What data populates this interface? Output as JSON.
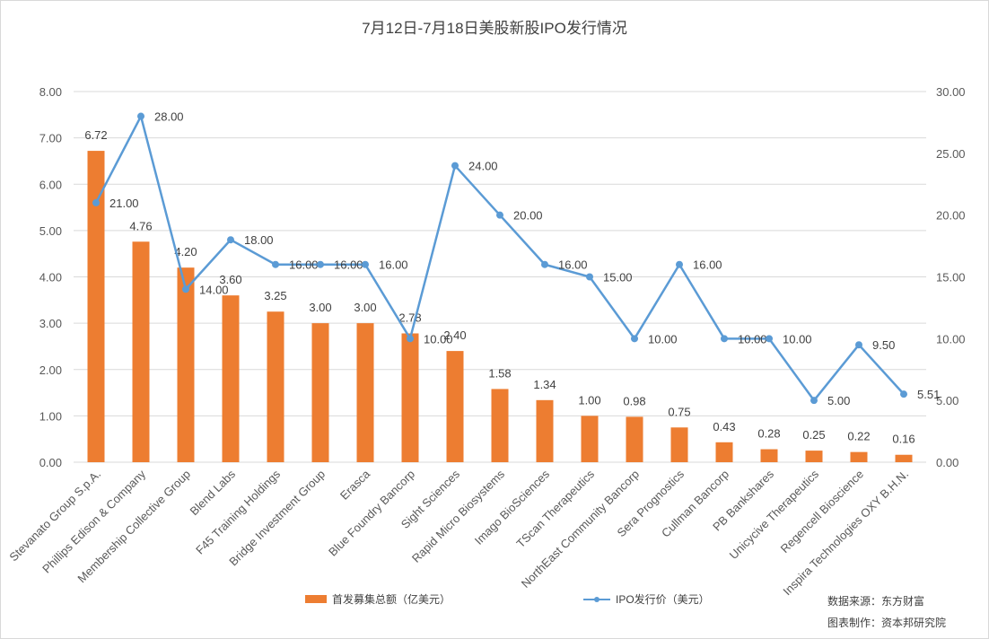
{
  "chart_data": {
    "type": "bar+line",
    "title": "7月12日-7月18日美股新股IPO发行情况",
    "categories": [
      "Stevanato Group S.p.A.",
      "Phillips Edison & Company",
      "Membership Collective Group",
      "Blend Labs",
      "F45 Training Holdings",
      "Bridge Investment Group",
      "Erasca",
      "Blue Foundry Bancorp",
      "Sight Sciences",
      "Rapid Micro Biosystems",
      "Imago BioSciences",
      "TScan Therapeutics",
      "NorthEast Community Bancorp",
      "Sera Prognostics",
      "Cullman Bancorp",
      "PB Bankshares",
      "Unicycive Therapeutics",
      "Regencell Bioscience",
      "Inspira Technologies OXY B.H.N."
    ],
    "series": [
      {
        "name": "首发募集总额（亿美元）",
        "type": "bar",
        "axis": "left",
        "color": "#ED7D31",
        "values": [
          6.72,
          4.76,
          4.2,
          3.6,
          3.25,
          3.0,
          3.0,
          2.78,
          2.4,
          1.58,
          1.34,
          1.0,
          0.98,
          0.75,
          0.43,
          0.28,
          0.25,
          0.22,
          0.16
        ]
      },
      {
        "name": "IPO发行价（美元）",
        "type": "line",
        "axis": "right",
        "color": "#5B9BD5",
        "values": [
          21.0,
          28.0,
          14.0,
          18.0,
          16.0,
          16.0,
          16.0,
          10.0,
          24.0,
          20.0,
          16.0,
          15.0,
          10.0,
          16.0,
          10.0,
          10.0,
          5.0,
          9.5,
          5.51
        ]
      }
    ],
    "left_axis": {
      "min": 0,
      "max": 8,
      "step": 1,
      "decimals": 2
    },
    "right_axis": {
      "min": 0,
      "max": 30,
      "step": 5,
      "decimals": 2
    },
    "grid": true,
    "legend_position": "bottom"
  },
  "source_lines": [
    "数据来源：东方财富",
    "图表制作：资本邦研究院"
  ]
}
